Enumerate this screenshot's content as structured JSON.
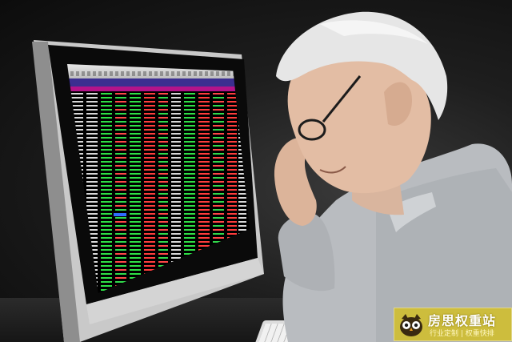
{
  "scene": {
    "subject": "elderly-man-reading-stock-monitor",
    "colors": {
      "screen_bg": "#000000",
      "ticker_red": "#ff3c3c",
      "ticker_green": "#2ee045",
      "header_purple": "#3b2e90",
      "header_magenta": "#b3138a",
      "shirt": "#b9bcc0",
      "hair": "#e6e6e6",
      "watermark_bg": "#d2be28"
    }
  },
  "watermark": {
    "title": "房思权重站",
    "slogan": "行业定制 | 权重快排",
    "icon": "owl-logo"
  }
}
